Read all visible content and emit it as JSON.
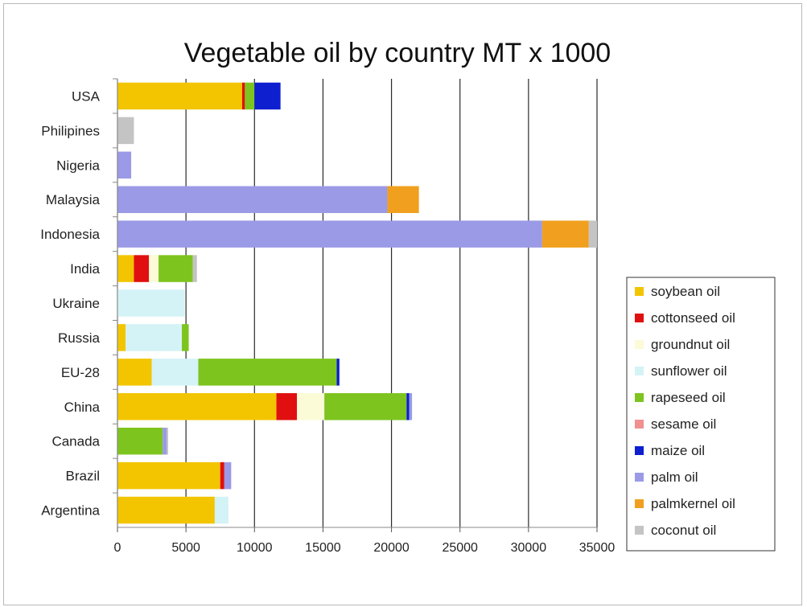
{
  "chart_data": {
    "type": "bar",
    "orientation": "horizontal",
    "stacked": true,
    "title": "Vegetable oil by country    MT x 1000",
    "categories": [
      "USA",
      "Philipines",
      "Nigeria",
      "Malaysia",
      "Indonesia",
      "India",
      "Ukraine",
      "Russia",
      "EU-28",
      "China",
      "Canada",
      "Brazil",
      "Argentina"
    ],
    "xlim": [
      0,
      35000
    ],
    "xticks": [
      "0",
      "5000",
      "10000",
      "15000",
      "20000",
      "25000",
      "30000",
      "35000"
    ],
    "grid": "vertical",
    "legend_position": "right",
    "series": [
      {
        "name": "soybean oil",
        "color": "#f2c500",
        "values": [
          9100,
          0,
          0,
          0,
          0,
          1200,
          0,
          600,
          2500,
          11600,
          0,
          7500,
          7100
        ]
      },
      {
        "name": "cottonseed oil",
        "color": "#e01010",
        "values": [
          200,
          0,
          0,
          0,
          0,
          1100,
          0,
          0,
          0,
          1500,
          0,
          300,
          0
        ]
      },
      {
        "name": "groundnut oil",
        "color": "#fbfbd8",
        "values": [
          0,
          0,
          0,
          0,
          0,
          700,
          0,
          0,
          0,
          2000,
          0,
          0,
          0
        ]
      },
      {
        "name": "sunflower oil",
        "color": "#d4f3f6",
        "values": [
          0,
          0,
          0,
          0,
          0,
          0,
          4900,
          4100,
          3400,
          0,
          0,
          0,
          1000
        ]
      },
      {
        "name": "rapeseed oil",
        "color": "#7dc41e",
        "values": [
          700,
          0,
          0,
          0,
          0,
          2500,
          0,
          500,
          10100,
          6000,
          3300,
          0,
          0
        ]
      },
      {
        "name": "sesame oil",
        "color": "#f09090",
        "values": [
          0,
          0,
          0,
          0,
          0,
          0,
          0,
          0,
          0,
          0,
          0,
          0,
          0
        ]
      },
      {
        "name": "maize oil",
        "color": "#0d1fcf",
        "values": [
          1900,
          0,
          0,
          0,
          0,
          0,
          0,
          0,
          200,
          200,
          0,
          0,
          0
        ]
      },
      {
        "name": "palm oil",
        "color": "#9a9ae6",
        "values": [
          0,
          0,
          1000,
          19700,
          31000,
          0,
          0,
          0,
          0,
          200,
          300,
          500,
          0
        ]
      },
      {
        "name": "palmkernel oil",
        "color": "#f0a01e",
        "values": [
          0,
          0,
          0,
          2300,
          3400,
          0,
          0,
          0,
          0,
          0,
          0,
          0,
          0
        ]
      },
      {
        "name": "coconut oil",
        "color": "#c4c4c4",
        "values": [
          0,
          1200,
          0,
          0,
          600,
          300,
          0,
          0,
          0,
          0,
          100,
          0,
          0
        ]
      }
    ]
  }
}
